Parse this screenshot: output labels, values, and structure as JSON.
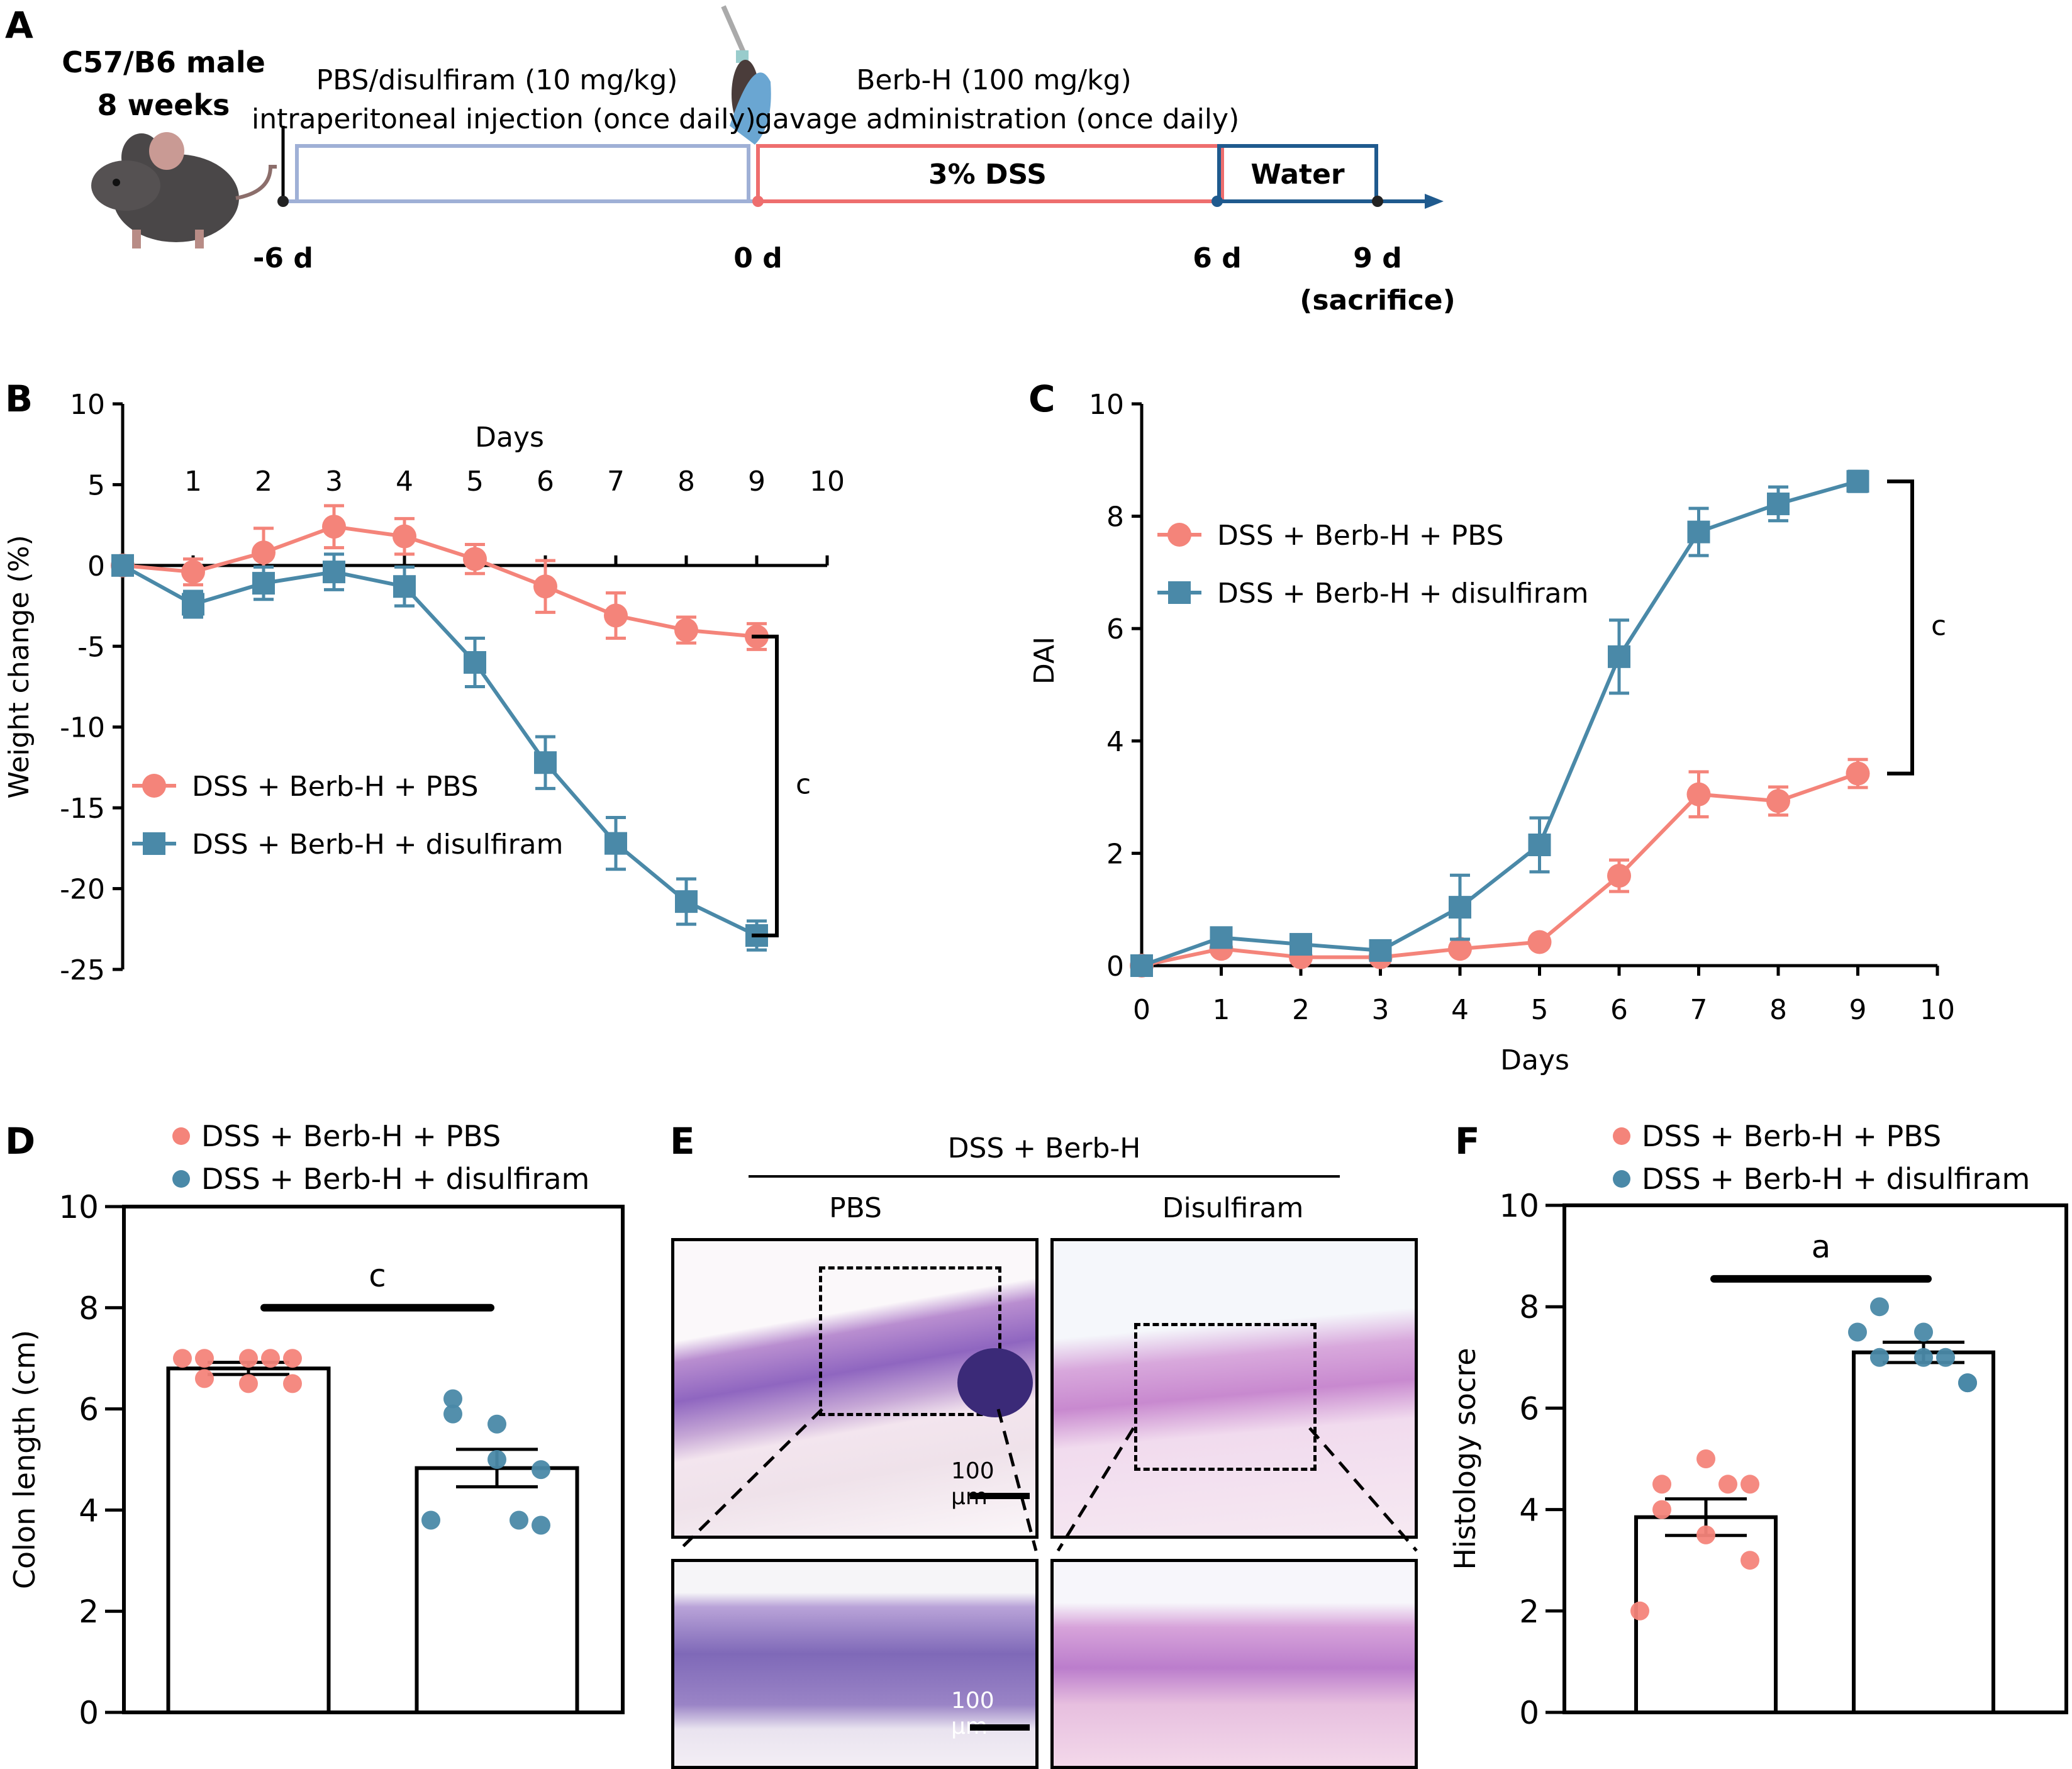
{
  "panels": {
    "A": {
      "letter": "A",
      "subject_line1": "C57/B6 male",
      "subject_line2": "8 weeks",
      "phase1_line1": "PBS/disulfiram (10 mg/kg)",
      "phase1_line2": "intraperitoneal injection (once daily)",
      "phase2_line1": "Berb-H (100 mg/kg)",
      "phase2_line2": "gavage administration (once daily)",
      "dss_label": "3% DSS",
      "water_label": "Water",
      "timepoints": [
        "-6 d",
        "0 d",
        "6 d",
        "9 d"
      ],
      "sacrifice_label": "(sacrifice)",
      "colors": {
        "phase1": "#9fb0d6",
        "dss": "#ee6e6e",
        "water": "#1f5a8e",
        "axis": "#8ca0c8"
      }
    },
    "B": {
      "letter": "B"
    },
    "C": {
      "letter": "C"
    },
    "D": {
      "letter": "D"
    },
    "E": {
      "letter": "E",
      "group_label": "DSS + Berb-H",
      "col_labels": [
        "PBS",
        "Disulfiram"
      ],
      "scale_bar_label": "100 μm"
    },
    "F": {
      "letter": "F"
    }
  },
  "colors": {
    "pbs": "#f4847a",
    "disulfiram": "#4a89a8"
  },
  "chart_data": [
    {
      "id": "B",
      "type": "line",
      "title": "",
      "xlabel": "Days",
      "ylabel": "Weight change (%)",
      "x": [
        0,
        1,
        2,
        3,
        4,
        5,
        6,
        7,
        8,
        9
      ],
      "xticks": [
        "1",
        "2",
        "3",
        "4",
        "5",
        "6",
        "7",
        "8",
        "9",
        "10"
      ],
      "yticks": [
        "10",
        "5",
        "0",
        "-5",
        "-10",
        "-15",
        "-20",
        "-25"
      ],
      "xlim": [
        0,
        10
      ],
      "ylim": [
        -25,
        10
      ],
      "legend": "left-middle",
      "series": [
        {
          "name": "DSS + Berb-H + PBS",
          "marker": "circle",
          "values": [
            0,
            -0.4,
            0.8,
            2.4,
            1.8,
            0.4,
            -1.3,
            -3.1,
            -4.0,
            -4.4
          ],
          "errors": [
            0.3,
            0.8,
            1.5,
            1.3,
            1.1,
            0.9,
            1.6,
            1.4,
            0.8,
            0.8
          ]
        },
        {
          "name": "DSS + Berb-H + disulfiram",
          "marker": "square",
          "values": [
            0,
            -2.4,
            -1.1,
            -0.4,
            -1.3,
            -6.0,
            -12.2,
            -17.2,
            -20.8,
            -22.9
          ],
          "errors": [
            0.3,
            0.8,
            1.0,
            1.1,
            1.2,
            1.5,
            1.6,
            1.6,
            1.4,
            0.9
          ]
        }
      ],
      "annotation": "c"
    },
    {
      "id": "C",
      "type": "line",
      "title": "",
      "xlabel": "Days",
      "ylabel": "DAI",
      "x": [
        0,
        1,
        2,
        3,
        4,
        5,
        6,
        7,
        8,
        9
      ],
      "xticks": [
        "0",
        "1",
        "2",
        "3",
        "4",
        "5",
        "6",
        "7",
        "8",
        "9",
        "10"
      ],
      "yticks": [
        "0",
        "2",
        "4",
        "6",
        "8",
        "10"
      ],
      "xlim": [
        0,
        10
      ],
      "ylim": [
        0,
        10
      ],
      "legend": "top-left",
      "series": [
        {
          "name": "DSS + Berb-H + PBS",
          "marker": "circle",
          "values": [
            0,
            0.3,
            0.15,
            0.15,
            0.3,
            0.42,
            1.6,
            3.05,
            2.93,
            3.42
          ],
          "errors": [
            0.05,
            0.08,
            0.05,
            0.05,
            0.05,
            0.05,
            0.28,
            0.4,
            0.25,
            0.25
          ]
        },
        {
          "name": "DSS + Berb-H + disulfiram",
          "marker": "square",
          "values": [
            0,
            0.5,
            0.38,
            0.27,
            1.04,
            2.15,
            5.5,
            7.72,
            8.22,
            8.62
          ],
          "errors": [
            0.05,
            0.05,
            0.05,
            0.05,
            0.57,
            0.48,
            0.65,
            0.42,
            0.3,
            0.18
          ]
        }
      ],
      "annotation": "c"
    },
    {
      "id": "D",
      "type": "bar",
      "title": "",
      "xlabel": "",
      "ylabel": "Colon length (cm)",
      "yticks": [
        "0",
        "2",
        "4",
        "6",
        "8",
        "10"
      ],
      "ylim": [
        0,
        10
      ],
      "legend": "top",
      "series": [
        {
          "name": "DSS + Berb-H + PBS",
          "mean": 6.8,
          "sem": 0.12,
          "points": [
            7.0,
            6.5,
            7.0,
            6.6,
            7.0,
            6.5,
            7.0,
            7.0
          ]
        },
        {
          "name": "DSS + Berb-H + disulfiram",
          "mean": 4.83,
          "sem": 0.37,
          "points": [
            5.9,
            5.0,
            3.7,
            6.2,
            5.7,
            4.8,
            3.8,
            3.8
          ]
        }
      ],
      "annotation": "c"
    },
    {
      "id": "F",
      "type": "bar",
      "title": "",
      "xlabel": "",
      "ylabel": "Histology socre",
      "yticks": [
        "0",
        "2",
        "4",
        "6",
        "8",
        "10"
      ],
      "ylim": [
        0,
        10
      ],
      "legend": "top",
      "series": [
        {
          "name": "DSS + Berb-H + PBS",
          "mean": 3.85,
          "sem": 0.36,
          "points": [
            4.5,
            5.0,
            4.5,
            4.0,
            3.5,
            3.0,
            2.0,
            4.5
          ]
        },
        {
          "name": "DSS + Berb-H + disulfiram",
          "mean": 7.1,
          "sem": 0.2,
          "points": [
            7.0,
            7.5,
            6.5,
            8.0,
            7.0,
            6.5,
            7.5,
            7.0
          ]
        }
      ],
      "annotation": "a"
    }
  ]
}
